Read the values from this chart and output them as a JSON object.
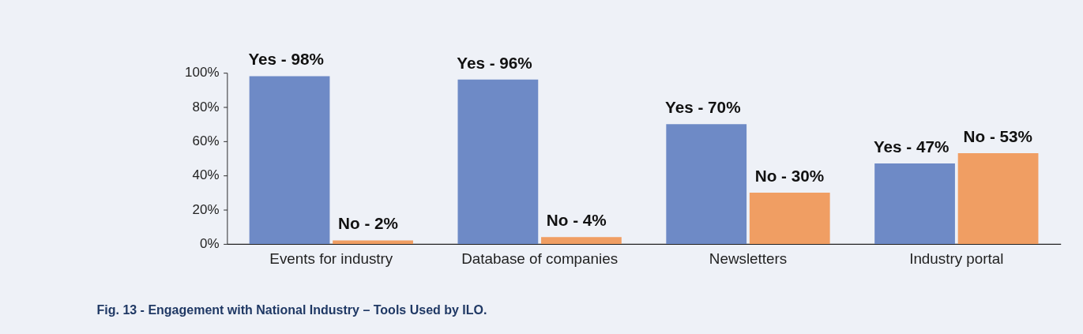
{
  "chart_data": {
    "type": "bar",
    "categories": [
      "Events for industry",
      "Database of companies",
      "Newsletters",
      "Industry portal"
    ],
    "series": [
      {
        "name": "Yes -",
        "color": "#6e8ac6",
        "values": [
          98,
          96,
          70,
          47
        ],
        "value_labels": [
          "98%",
          "96%",
          "70%",
          "47%"
        ]
      },
      {
        "name": "No -",
        "color": "#f09e63",
        "values": [
          2,
          4,
          30,
          53
        ],
        "value_labels": [
          "2%",
          "4%",
          "30%",
          "53%"
        ]
      }
    ],
    "ylim": [
      0,
      100
    ],
    "yticks": [
      {
        "value": 0,
        "label": "0%"
      },
      {
        "value": 20,
        "label": "20%"
      },
      {
        "value": 40,
        "label": "40%"
      },
      {
        "value": 60,
        "label": "60%"
      },
      {
        "value": 80,
        "label": "80%"
      },
      {
        "value": 100,
        "label": "100%"
      }
    ],
    "grid": false,
    "legend": false,
    "annotations": [
      "Fig. 13 - Engagement with National Industry – Tools Used by ILO."
    ]
  }
}
